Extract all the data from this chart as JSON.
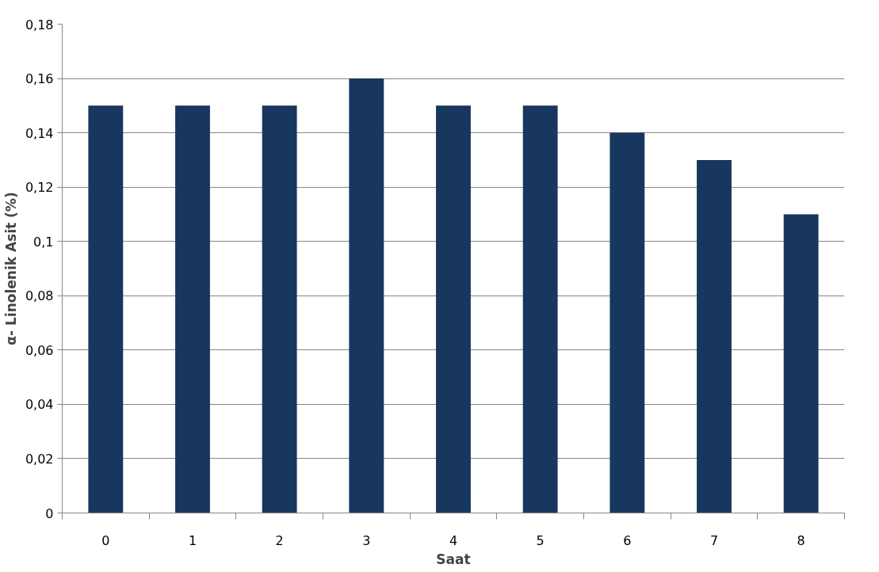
{
  "chart_data": {
    "type": "bar",
    "xlabel": "Saat",
    "ylabel": "α- Linolenik Asit (%)",
    "categories": [
      "0",
      "1",
      "2",
      "3",
      "4",
      "5",
      "6",
      "7",
      "8"
    ],
    "values": [
      0.15,
      0.15,
      0.15,
      0.16,
      0.15,
      0.15,
      0.14,
      0.13,
      0.11
    ],
    "color": "#17375e",
    "ylim": [
      0,
      0.18
    ],
    "yticks": [
      0,
      {
        "value": 0.02,
        "label": "0,02"
      },
      {
        "value": 0.04,
        "label": "0,04"
      },
      {
        "value": 0.06,
        "label": "0,06"
      },
      {
        "value": 0.08,
        "label": "0,08"
      },
      {
        "value": 0.1,
        "label": "0,1"
      },
      {
        "value": 0.12,
        "label": "0,12"
      },
      {
        "value": 0.14,
        "label": "0,14"
      },
      {
        "value": 0.16,
        "label": "0,16"
      },
      {
        "value": 0.18,
        "label": "0,18"
      }
    ],
    "grid": "y"
  }
}
